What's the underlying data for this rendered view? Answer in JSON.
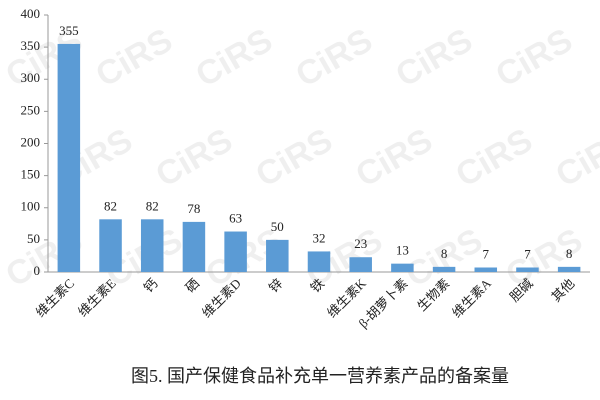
{
  "chart_data": {
    "type": "bar",
    "title": "图5. 国产保健食品补充单一营养素产品的备案量",
    "watermark": "CiRS",
    "categories": [
      "维生素C",
      "维生素E",
      "钙",
      "硒",
      "维生素D",
      "锌",
      "铁",
      "维生素K",
      "β-胡萝卜素",
      "生物素",
      "维生素A",
      "胆碱",
      "其他"
    ],
    "values": [
      355,
      82,
      82,
      78,
      63,
      50,
      32,
      23,
      13,
      8,
      7,
      7,
      8
    ],
    "color": "#5b9bd5",
    "ylim": [
      0,
      400
    ],
    "yticks": [
      0,
      50,
      100,
      150,
      200,
      250,
      300,
      350,
      400
    ],
    "grid": false
  }
}
